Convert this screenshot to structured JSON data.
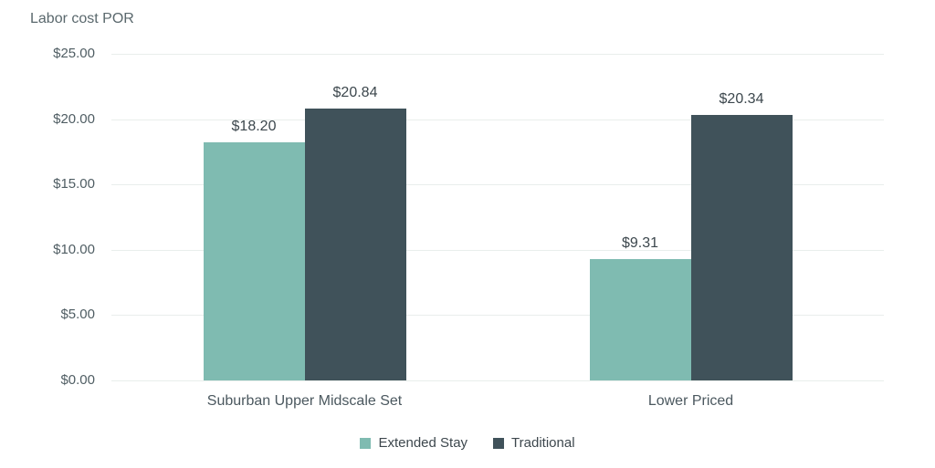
{
  "chart_title": "Labor cost POR",
  "colors": {
    "extended_stay": "#7fbbb1",
    "traditional": "#40525a",
    "gridline": "#e9eeec",
    "axis_text": "#4f5d63",
    "value_label_text": "#3c474d",
    "background": "#ffffff"
  },
  "chart_data": {
    "type": "bar",
    "title": "Labor cost POR",
    "categories": [
      "Suburban Upper Midscale Set",
      "Lower Priced"
    ],
    "series": [
      {
        "name": "Extended Stay",
        "color": "#7fbbb1",
        "values": [
          18.2,
          9.31
        ],
        "labels": [
          "$18.20",
          "$9.31"
        ]
      },
      {
        "name": "Traditional",
        "color": "#40525a",
        "values": [
          20.84,
          20.34
        ],
        "labels": [
          "$20.84",
          "$20.34"
        ]
      }
    ],
    "xlabel": "",
    "ylabel": "",
    "ylim": [
      0,
      25
    ],
    "yticks": [
      {
        "value": 0,
        "label": "$0.00"
      },
      {
        "value": 5,
        "label": "$5.00"
      },
      {
        "value": 10,
        "label": "$10.00"
      },
      {
        "value": 15,
        "label": "$15.00"
      },
      {
        "value": 20,
        "label": "$20.00"
      },
      {
        "value": 25,
        "label": "$25.00"
      }
    ],
    "grid": true,
    "legend_position": "bottom"
  }
}
